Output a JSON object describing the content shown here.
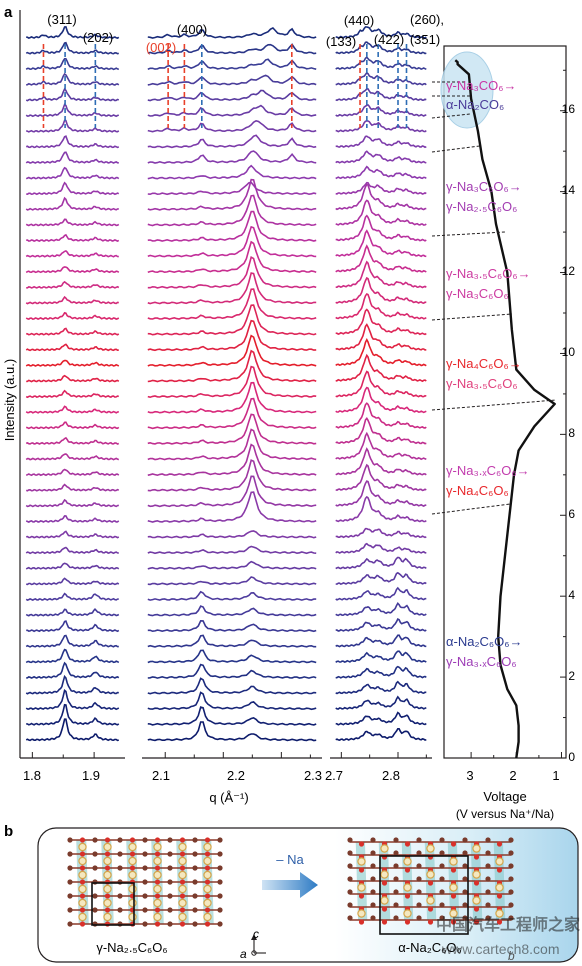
{
  "panel_a_label": "a",
  "panel_b_label": "b",
  "y_axis_label": "Intensity (a.u.)",
  "x_axis_label": "q (Å⁻¹)",
  "voltage_label_1": "Voltage",
  "voltage_label_2": "(V versus Na⁺/Na)",
  "peaks": {
    "p311": "(311)",
    "p202": "(202)",
    "p400": "(400)",
    "p002": "(002)",
    "p440": "(440)",
    "p133": "(133)",
    "p422": "(422)",
    "p260": "(260),",
    "p351": "(351)"
  },
  "x_ticks_1": [
    "1.8",
    "1.9"
  ],
  "x_ticks_2": [
    "2.1",
    "2.2",
    "2.3"
  ],
  "x_ticks_3": [
    "2.7",
    "2.8"
  ],
  "voltage_ticks": [
    "3",
    "2",
    "1"
  ],
  "time_ticks": [
    "0",
    "2",
    "4",
    "6",
    "8",
    "10",
    "12",
    "14",
    "16"
  ],
  "phase_labels": [
    {
      "a": "γ-Na₃CO₆→",
      "b": "α-Na₂CO₆",
      "ca": "#c837a5",
      "cb": "#4b3c99"
    },
    {
      "a": "γ-Na₃C₆O₆→",
      "b": "γ-Na₂.₅C₆O₆",
      "ca": "#a33db2",
      "cb": "#a33db2"
    },
    {
      "a": "γ-Na₃.₅C₆O₆→",
      "b": "γ-Na₃C₆O₆",
      "ca": "#cc3aa0",
      "cb": "#cc3aa0"
    },
    {
      "a": "γ-Na₄C₆O₆→",
      "b": "γ-Na₃.₅C₆O₆",
      "ca": "#e8272c",
      "cb": "#e0407c"
    },
    {
      "a": "γ-Na₃.ₓC₆O₆→",
      "b": "γ-Na₄C₆O₆",
      "ca": "#c23cad",
      "cb": "#e8272c"
    },
    {
      "a": "α-Na₂C₆O₆→",
      "b": "γ-Na₃.ₓC₆O₆",
      "ca": "#2a3a8f",
      "cb": "#9d3cb6"
    }
  ],
  "panel_b": {
    "left_label": "γ-Na₂.₅C₆O₆",
    "right_label": "α-Na₂C₆O₆",
    "arrow_label": "– Na",
    "axis_c": "c",
    "axis_a": "a",
    "axis_b": "b"
  },
  "watermark": "中国汽车工程师之家",
  "watermark_url": "www.cartech8.com",
  "colors": {
    "navy": "#16236e",
    "purple": "#8a3aa8",
    "magenta": "#d8287a",
    "red": "#e41e2b",
    "orange_dash": "#e8402a",
    "blue_dash": "#2e6db5"
  },
  "chart_data": {
    "type": "line",
    "n_patterns": 46,
    "x_ranges": [
      [
        1.78,
        1.95
      ],
      [
        2.06,
        2.37
      ],
      [
        2.68,
        2.86
      ]
    ],
    "voltage_xlim": [
      3.6,
      0.9
    ],
    "time_ylim": [
      0,
      17.6
    ],
    "voltage_profile": [
      {
        "v": 2.0,
        "t": 0.0
      },
      {
        "v": 1.95,
        "t": 0.4
      },
      {
        "v": 1.95,
        "t": 0.8
      },
      {
        "v": 2.0,
        "t": 1.3
      },
      {
        "v": 2.2,
        "t": 1.7
      },
      {
        "v": 2.35,
        "t": 2.3
      },
      {
        "v": 2.4,
        "t": 3.0
      },
      {
        "v": 2.35,
        "t": 4.0
      },
      {
        "v": 2.25,
        "t": 5.0
      },
      {
        "v": 2.15,
        "t": 6.0
      },
      {
        "v": 2.05,
        "t": 7.0
      },
      {
        "v": 1.95,
        "t": 7.6
      },
      {
        "v": 1.6,
        "t": 8.2
      },
      {
        "v": 1.15,
        "t": 8.75
      },
      {
        "v": 1.6,
        "t": 9.1
      },
      {
        "v": 2.0,
        "t": 9.6
      },
      {
        "v": 2.1,
        "t": 10.6
      },
      {
        "v": 2.2,
        "t": 12.0
      },
      {
        "v": 2.45,
        "t": 13.2
      },
      {
        "v": 2.55,
        "t": 14.0
      },
      {
        "v": 2.75,
        "t": 14.8
      },
      {
        "v": 2.85,
        "t": 15.5
      },
      {
        "v": 3.0,
        "t": 16.3
      },
      {
        "v": 3.05,
        "t": 16.9
      },
      {
        "v": 3.3,
        "t": 17.15
      }
    ],
    "phase_boundaries_t": [
      6.0,
      8.7,
      10.9,
      12.85,
      14.9,
      15.8,
      16.2,
      16.55,
      16.8,
      17.05
    ]
  }
}
